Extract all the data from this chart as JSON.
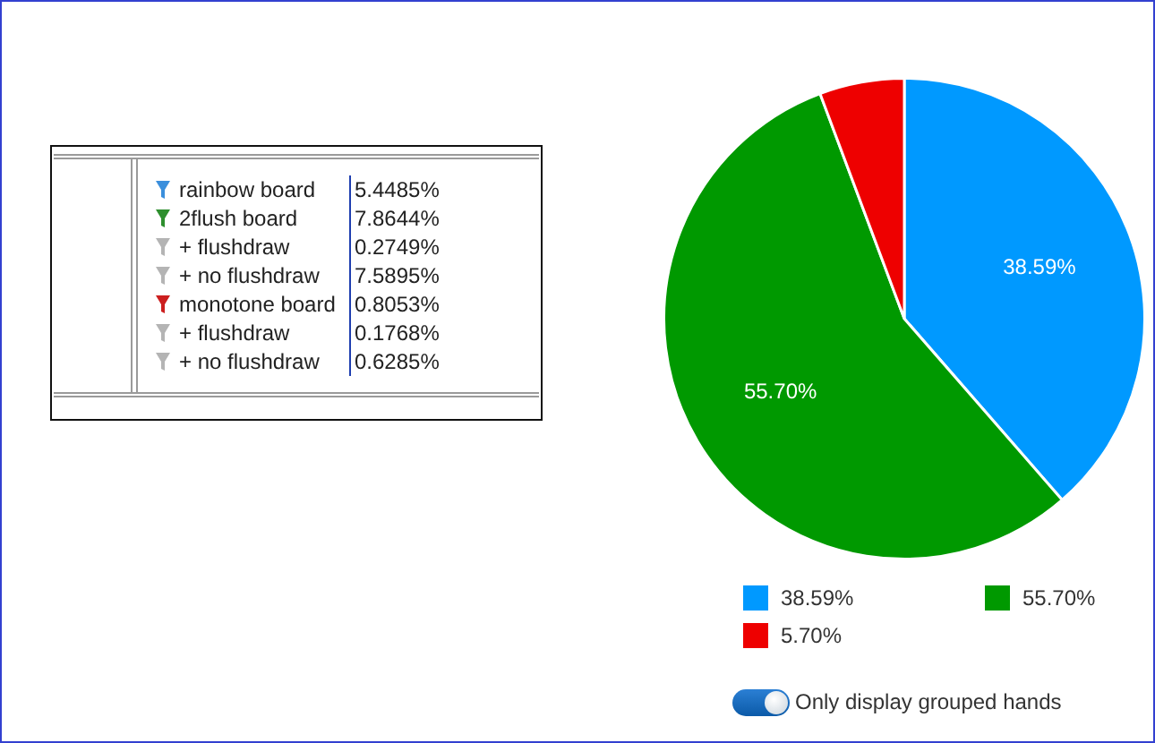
{
  "chart_data": [
    {
      "type": "other",
      "categories": [
        "rainbow board",
        "2flush board",
        "+ flushdraw",
        "+ no flushdraw",
        "monotone board",
        "+ flushdraw",
        "+ no flushdraw"
      ],
      "value_labels": [
        "5.4485%",
        "7.8644%",
        "0.2749%",
        "7.5895%",
        "0.8053%",
        "0.1768%",
        "0.6285%"
      ],
      "colors": [
        "#3b8fdc",
        "#2e8f2e",
        "#b4b4b4",
        "#b4b4b4",
        "#cc1f1f",
        "#b4b4b4",
        "#b4b4b4"
      ]
    },
    {
      "type": "pie",
      "categories": [
        "38.59%",
        "55.70%",
        "5.70%"
      ],
      "values": [
        38.59,
        55.7,
        5.7
      ],
      "colors": [
        "#0099ff",
        "#009900",
        "#ee0000"
      ],
      "value_labels": [
        "38.59%",
        "55.70%",
        null
      ],
      "legend": "bottom",
      "annotations": [
        "Only display grouped hands"
      ]
    }
  ]
}
